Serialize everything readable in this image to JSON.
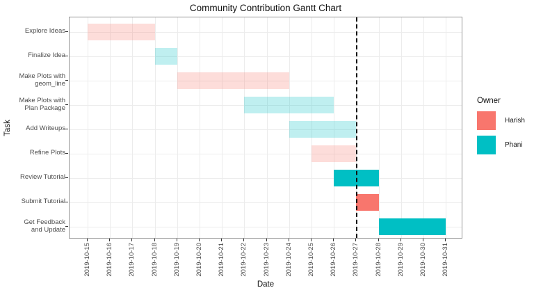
{
  "title": "Community Contribution Gantt Chart",
  "axes": {
    "x_title": "Date",
    "y_title": "Task",
    "x_ticks": [
      "2019-10-15",
      "2019-10-16",
      "2019-10-17",
      "2019-10-18",
      "2019-10-19",
      "2019-10-20",
      "2019-10-21",
      "2019-10-22",
      "2019-10-23",
      "2019-10-24",
      "2019-10-25",
      "2019-10-26",
      "2019-10-27",
      "2019-10-28",
      "2019-10-29",
      "2019-10-30",
      "2019-10-31"
    ]
  },
  "legend": {
    "title": "Owner",
    "entries": [
      {
        "label": "Harish",
        "color": "#F8766D"
      },
      {
        "label": "Phani",
        "color": "#00BFC4"
      }
    ]
  },
  "chart_data": {
    "type": "bar",
    "variant": "gantt",
    "title": "Community Contribution Gantt Chart",
    "xlabel": "Date",
    "ylabel": "Task",
    "x_range": [
      "2019-10-15",
      "2019-10-31"
    ],
    "grid": true,
    "legend_position": "right",
    "today_marker_date": "2019-10-27",
    "completed_task_opacity": 0.25,
    "tasks": [
      {
        "label": "Explore Ideas",
        "owner": "Harish",
        "start": "2019-10-15",
        "end": "2019-10-18"
      },
      {
        "label": "Finalize Idea",
        "owner": "Phani",
        "start": "2019-10-18",
        "end": "2019-10-19"
      },
      {
        "label": "Make Plots with\ngeom_line",
        "owner": "Harish",
        "start": "2019-10-19",
        "end": "2019-10-24"
      },
      {
        "label": "Make Plots with\nPlan Package",
        "owner": "Phani",
        "start": "2019-10-22",
        "end": "2019-10-26"
      },
      {
        "label": "Add Writeups",
        "owner": "Phani",
        "start": "2019-10-24",
        "end": "2019-10-27"
      },
      {
        "label": "Refine Plots",
        "owner": "Harish",
        "start": "2019-10-25",
        "end": "2019-10-27"
      },
      {
        "label": "Review Tutorial",
        "owner": "Phani",
        "start": "2019-10-26",
        "end": "2019-10-28"
      },
      {
        "label": "Submit Tutorial",
        "owner": "Harish",
        "start": "2019-10-27",
        "end": "2019-10-28"
      },
      {
        "label": "Get Feedback\nand Update",
        "owner": "Phani",
        "start": "2019-10-28",
        "end": "2019-10-31"
      }
    ]
  }
}
